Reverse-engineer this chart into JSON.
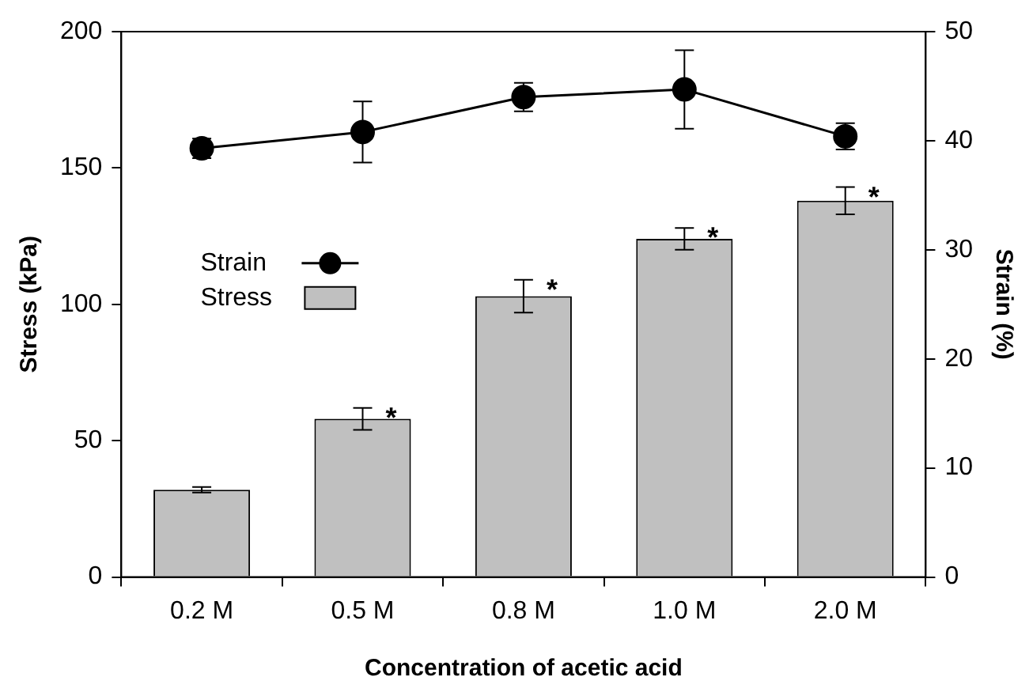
{
  "chart_data": {
    "type": "bar",
    "xlabel": "Concentration of acetic acid",
    "ylabel": "Stress (kPa)",
    "y2label": "Strain (%)",
    "categories": [
      "0.2 M",
      "0.5 M",
      "0.8 M",
      "1.0 M",
      "2.0 M"
    ],
    "series": [
      {
        "name": "Stress",
        "color": "#c0c0c0",
        "values": [
          32,
          58,
          103,
          124,
          138
        ],
        "errors": [
          1,
          4,
          6,
          4,
          5
        ]
      },
      {
        "name": "Strain",
        "type": "line",
        "axis": "y2",
        "color": "#000000",
        "values": [
          39.3,
          40.8,
          44,
          44.7,
          40.4
        ],
        "errors": [
          0.9,
          2.8,
          1.3,
          3.6,
          1.2
        ]
      }
    ],
    "ylim": [
      0,
      200
    ],
    "yticks": [
      0,
      50,
      100,
      150,
      200
    ],
    "y2lim": [
      0,
      50
    ],
    "y2ticks": [
      0,
      10,
      20,
      30,
      40,
      50
    ],
    "annotations": [
      {
        "text": "*",
        "x": "0.5 M",
        "y": 62
      },
      {
        "text": "*",
        "x": "0.8 M",
        "y": 109
      },
      {
        "text": "*",
        "x": "1.0 M",
        "y": 128
      },
      {
        "text": "*",
        "x": "2.0 M",
        "y": 143
      }
    ],
    "grid": false,
    "legend": "left",
    "marker": "circle",
    "line_style": "solid"
  }
}
